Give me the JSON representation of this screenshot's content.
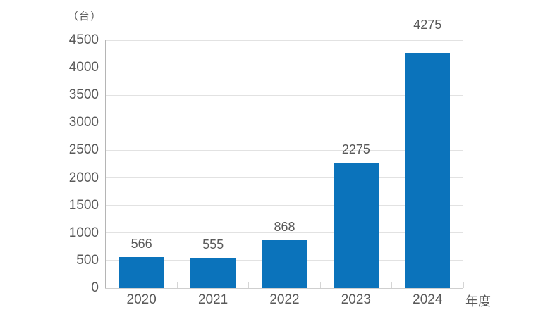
{
  "chart_data": {
    "type": "bar",
    "title": "",
    "y_unit_label": "（台）",
    "x_unit_label": "年度",
    "categories": [
      "2020",
      "2021",
      "2022",
      "2023",
      "2024"
    ],
    "values": [
      566,
      555,
      868,
      2275,
      4275
    ],
    "value_labels": [
      "566",
      "555",
      "868",
      "2275",
      "4275"
    ],
    "ylim": [
      0,
      4500
    ],
    "ytick_step": 500,
    "yticks": [
      0,
      500,
      1000,
      1500,
      2000,
      2500,
      3000,
      3500,
      4000,
      4500
    ],
    "grid": true,
    "legend": "none",
    "colors": {
      "bar": "#0b73bb",
      "text": "#595959",
      "gridline": "#e2e2e2",
      "axis_y": "#b5b5b5",
      "axis_x": "#cfcfcf",
      "category_tick": "#d5d5d5",
      "background": "#ffffff"
    }
  }
}
